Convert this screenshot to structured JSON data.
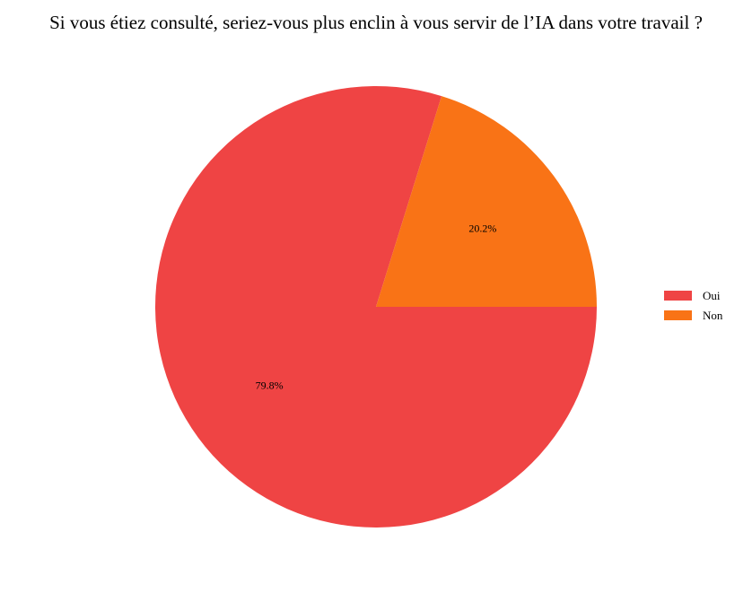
{
  "chart_data": {
    "type": "pie",
    "title": "Si vous étiez consulté, seriez-vous plus enclin à vous servir de l’IA dans votre travail ?",
    "categories": [
      "Oui",
      "Non"
    ],
    "values": [
      79.8,
      20.2
    ],
    "labels": [
      "79.8%",
      "20.2%"
    ],
    "colors": [
      "#ef4444",
      "#f97316"
    ],
    "legend_position": "right"
  }
}
